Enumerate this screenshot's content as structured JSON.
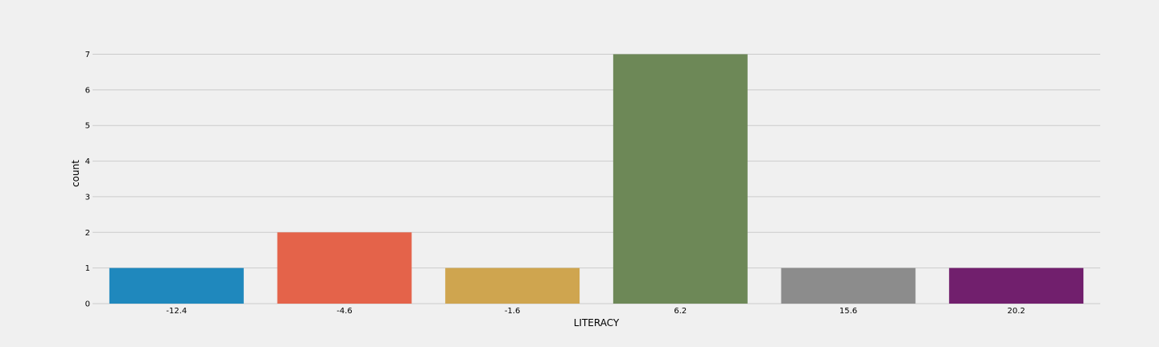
{
  "chart_data": {
    "type": "bar",
    "categories": [
      "-12.4",
      "-4.6",
      "-1.6",
      "6.2",
      "15.6",
      "20.2"
    ],
    "values": [
      1,
      2,
      1,
      7,
      1,
      1
    ],
    "colors": [
      "#1f88bd",
      "#e4634a",
      "#cfa54f",
      "#6d8857",
      "#8c8c8c",
      "#711f6d"
    ],
    "xlabel": "LITERACY",
    "ylabel": "count",
    "ylim": [
      0,
      7
    ],
    "yticks": [
      0,
      1,
      2,
      3,
      4,
      5,
      6,
      7
    ],
    "grid": "horizontal",
    "background": "#f0f0f0"
  }
}
